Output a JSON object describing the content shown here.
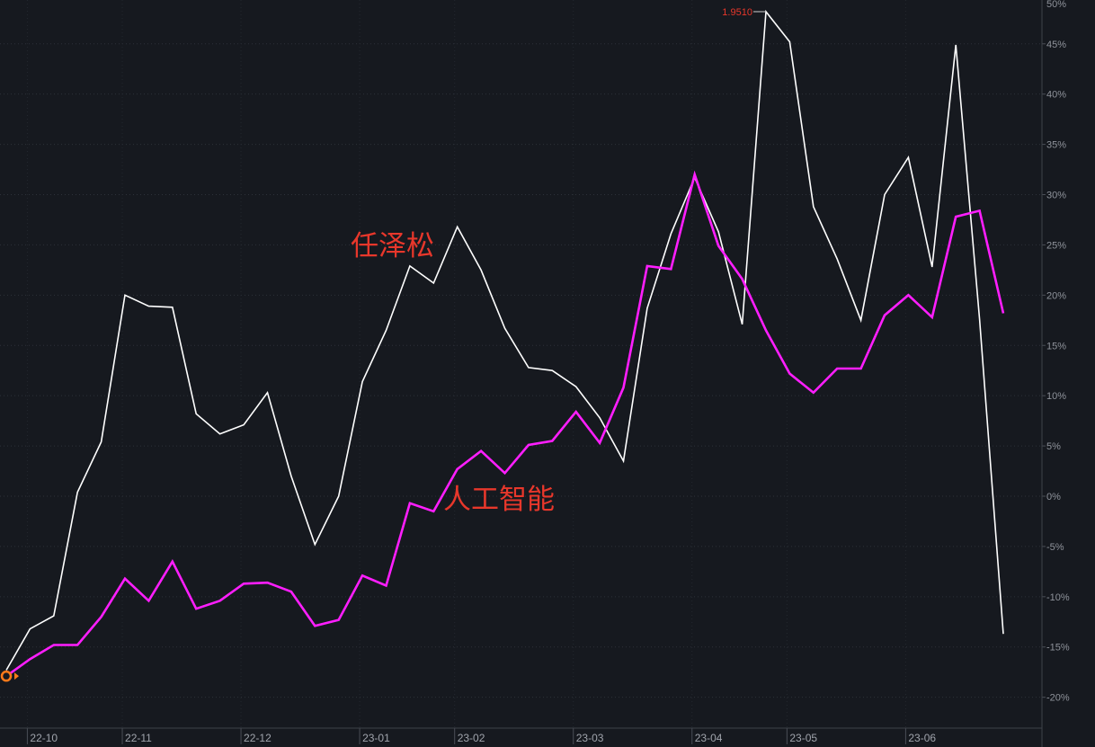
{
  "chart_data": {
    "type": "line",
    "title": "",
    "xlabel": "",
    "ylabel": "",
    "ylim": [
      -20,
      50
    ],
    "grid": true,
    "y_axis_position": "right",
    "background": "#16191f",
    "label_color": "#e8372b",
    "marker_color": "#ff7a1a",
    "y_ticks": [
      {
        "value": 50,
        "label": "50%"
      },
      {
        "value": 45,
        "label": "45%"
      },
      {
        "value": 40,
        "label": "40%"
      },
      {
        "value": 35,
        "label": "35%"
      },
      {
        "value": 30,
        "label": "30%"
      },
      {
        "value": 25,
        "label": "25%"
      },
      {
        "value": 20,
        "label": "20%"
      },
      {
        "value": 15,
        "label": "15%"
      },
      {
        "value": 10,
        "label": "10%"
      },
      {
        "value": 5,
        "label": "5%"
      },
      {
        "value": 0,
        "label": "0%"
      },
      {
        "value": -5,
        "label": "-5%"
      },
      {
        "value": -10,
        "label": "-10%"
      },
      {
        "value": -15,
        "label": "-15%"
      },
      {
        "value": -20,
        "label": "-20%"
      }
    ],
    "x_ticks": [
      {
        "index": 1,
        "label": "22-10"
      },
      {
        "index": 5,
        "label": "22-11"
      },
      {
        "index": 10,
        "label": "22-12"
      },
      {
        "index": 15,
        "label": "23-01"
      },
      {
        "index": 19,
        "label": "23-02"
      },
      {
        "index": 24,
        "label": "23-03"
      },
      {
        "index": 29,
        "label": "23-04"
      },
      {
        "index": 33,
        "label": "23-05"
      },
      {
        "index": 38,
        "label": "23-06"
      }
    ],
    "series": [
      {
        "name": "任泽松",
        "color": "#ffffff",
        "values": [
          -17.3,
          -13.2,
          -11.9,
          0.4,
          5.4,
          20.0,
          18.9,
          18.8,
          8.2,
          6.2,
          7.1,
          10.3,
          2.0,
          -4.8,
          0.0,
          11.4,
          16.5,
          22.9,
          21.2,
          26.8,
          22.5,
          16.7,
          12.8,
          12.5,
          10.9,
          7.8,
          3.5,
          18.7,
          26.1,
          31.7,
          26.3,
          17.1,
          48.2,
          45.2,
          28.8,
          23.6,
          17.5,
          30.0,
          33.7,
          22.8,
          44.9,
          17.6,
          -13.7
        ]
      },
      {
        "name": "人工智能",
        "color": "#ff1eff",
        "values": [
          -17.9,
          -16.2,
          -14.8,
          -14.8,
          -12.0,
          -8.2,
          -10.4,
          -6.5,
          -11.2,
          -10.4,
          -8.7,
          -8.6,
          -9.5,
          -12.9,
          -12.3,
          -7.9,
          -8.9,
          -0.7,
          -1.5,
          2.7,
          4.5,
          2.3,
          5.1,
          5.5,
          8.4,
          5.3,
          10.8,
          22.9,
          22.6,
          32.0,
          24.9,
          21.6,
          16.5,
          12.2,
          10.3,
          12.7,
          12.7,
          18.0,
          20.0,
          17.8,
          27.8,
          28.4,
          18.2
        ]
      }
    ],
    "annotations": [
      {
        "series": 0,
        "index": 32,
        "text": "1.9510",
        "color": "#e8372b"
      }
    ]
  }
}
